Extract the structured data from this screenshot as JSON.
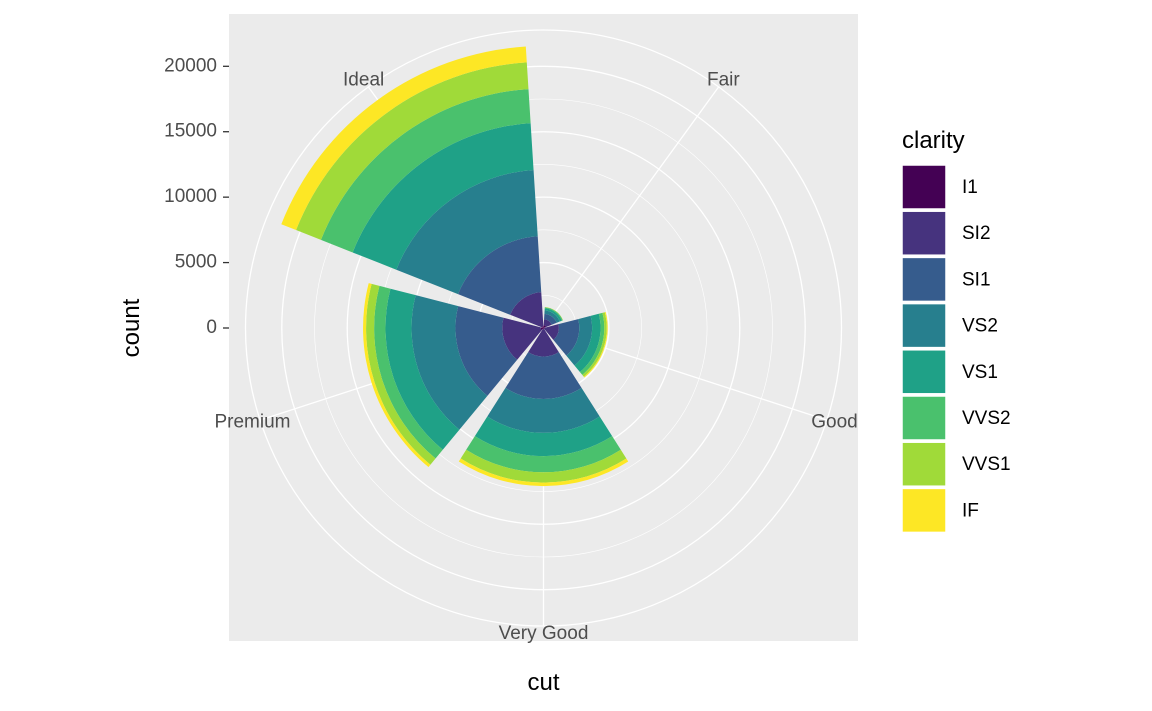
{
  "chart_data": {
    "type": "bar",
    "coord": "polar",
    "position": "stack",
    "xlabel": "cut",
    "ylabel": "count",
    "categories": [
      "Fair",
      "Good",
      "Very Good",
      "Premium",
      "Ideal"
    ],
    "yticks": [
      0,
      5000,
      10000,
      15000,
      20000
    ],
    "ytick_labels": [
      "0",
      "5000",
      "10000",
      "15000",
      "20000"
    ],
    "ylim": [
      0,
      21551
    ],
    "grid": true,
    "legend": {
      "title": "clarity",
      "position": "right",
      "entries": [
        "I1",
        "SI2",
        "SI1",
        "VS2",
        "VS1",
        "VVS2",
        "VVS1",
        "IF"
      ]
    },
    "series": [
      {
        "name": "I1",
        "color": "#440154",
        "values": [
          210,
          96,
          84,
          205,
          146
        ]
      },
      {
        "name": "SI2",
        "color": "#46337E",
        "values": [
          466,
          1081,
          2100,
          2949,
          2598
        ]
      },
      {
        "name": "SI1",
        "color": "#365C8D",
        "values": [
          408,
          1560,
          3240,
          3575,
          4282
        ]
      },
      {
        "name": "VS2",
        "color": "#277F8E",
        "values": [
          261,
          978,
          2591,
          3357,
          5071
        ]
      },
      {
        "name": "VS1",
        "color": "#1FA187",
        "values": [
          170,
          648,
          1775,
          1989,
          3589
        ]
      },
      {
        "name": "VVS2",
        "color": "#4AC16D",
        "values": [
          69,
          286,
          1235,
          870,
          2606
        ]
      },
      {
        "name": "VVS1",
        "color": "#A0DA39",
        "values": [
          17,
          186,
          789,
          616,
          2047
        ]
      },
      {
        "name": "IF",
        "color": "#FDE725",
        "values": [
          9,
          71,
          268,
          230,
          1212
        ]
      }
    ]
  }
}
